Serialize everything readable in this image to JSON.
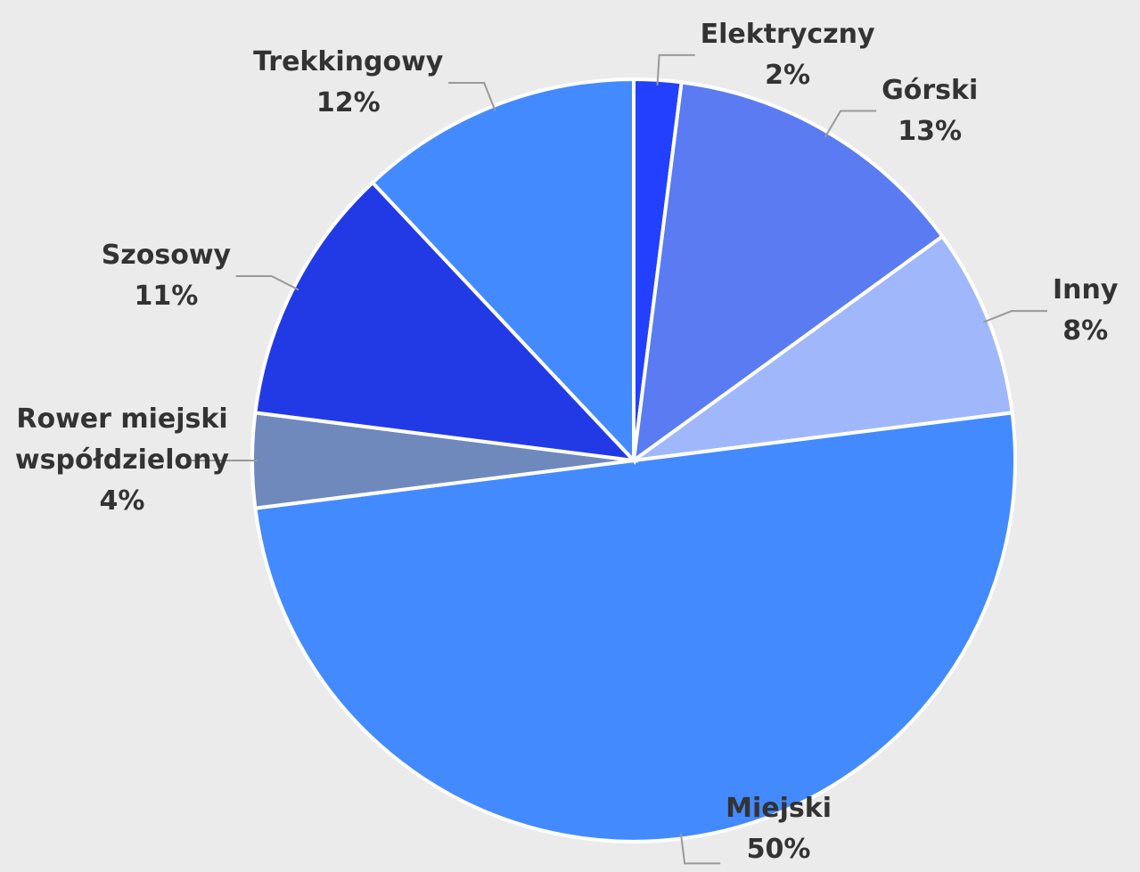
{
  "chart_data": {
    "type": "pie",
    "categories": [
      "Elektryczny",
      "Górski",
      "Inny",
      "Miejski",
      "Rower miejski współdzielony",
      "Szosowy",
      "Trekkingowy"
    ],
    "values": [
      2,
      13,
      8,
      50,
      4,
      11,
      12
    ],
    "value_labels": [
      "2%",
      "13%",
      "8%",
      "50%",
      "4%",
      "11%",
      "12%"
    ],
    "colors": [
      "#2340ff",
      "#5b7bf2",
      "#a0b8fb",
      "#448aff",
      "#6f89bd",
      "#223ae6",
      "#448aff"
    ]
  }
}
